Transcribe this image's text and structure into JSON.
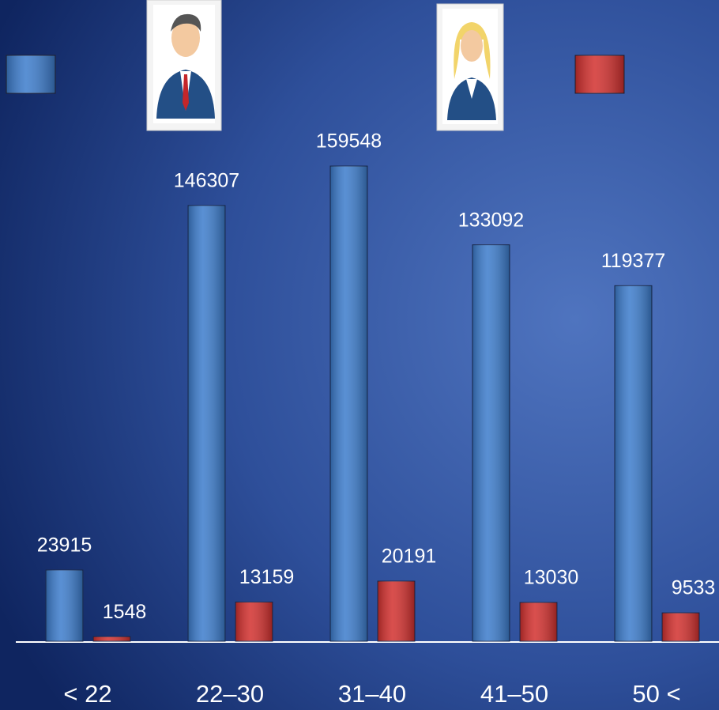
{
  "chart_data": {
    "type": "bar",
    "categories": [
      "< 22",
      "22–30",
      "31–40",
      "41–50",
      "50 <"
    ],
    "series": [
      {
        "color": "#3c7ccc",
        "values": [
          23915,
          146307,
          159548,
          133092,
          119377
        ]
      },
      {
        "color": "#d2302e",
        "values": [
          1548,
          13159,
          20191,
          13030,
          9533
        ]
      }
    ]
  }
}
